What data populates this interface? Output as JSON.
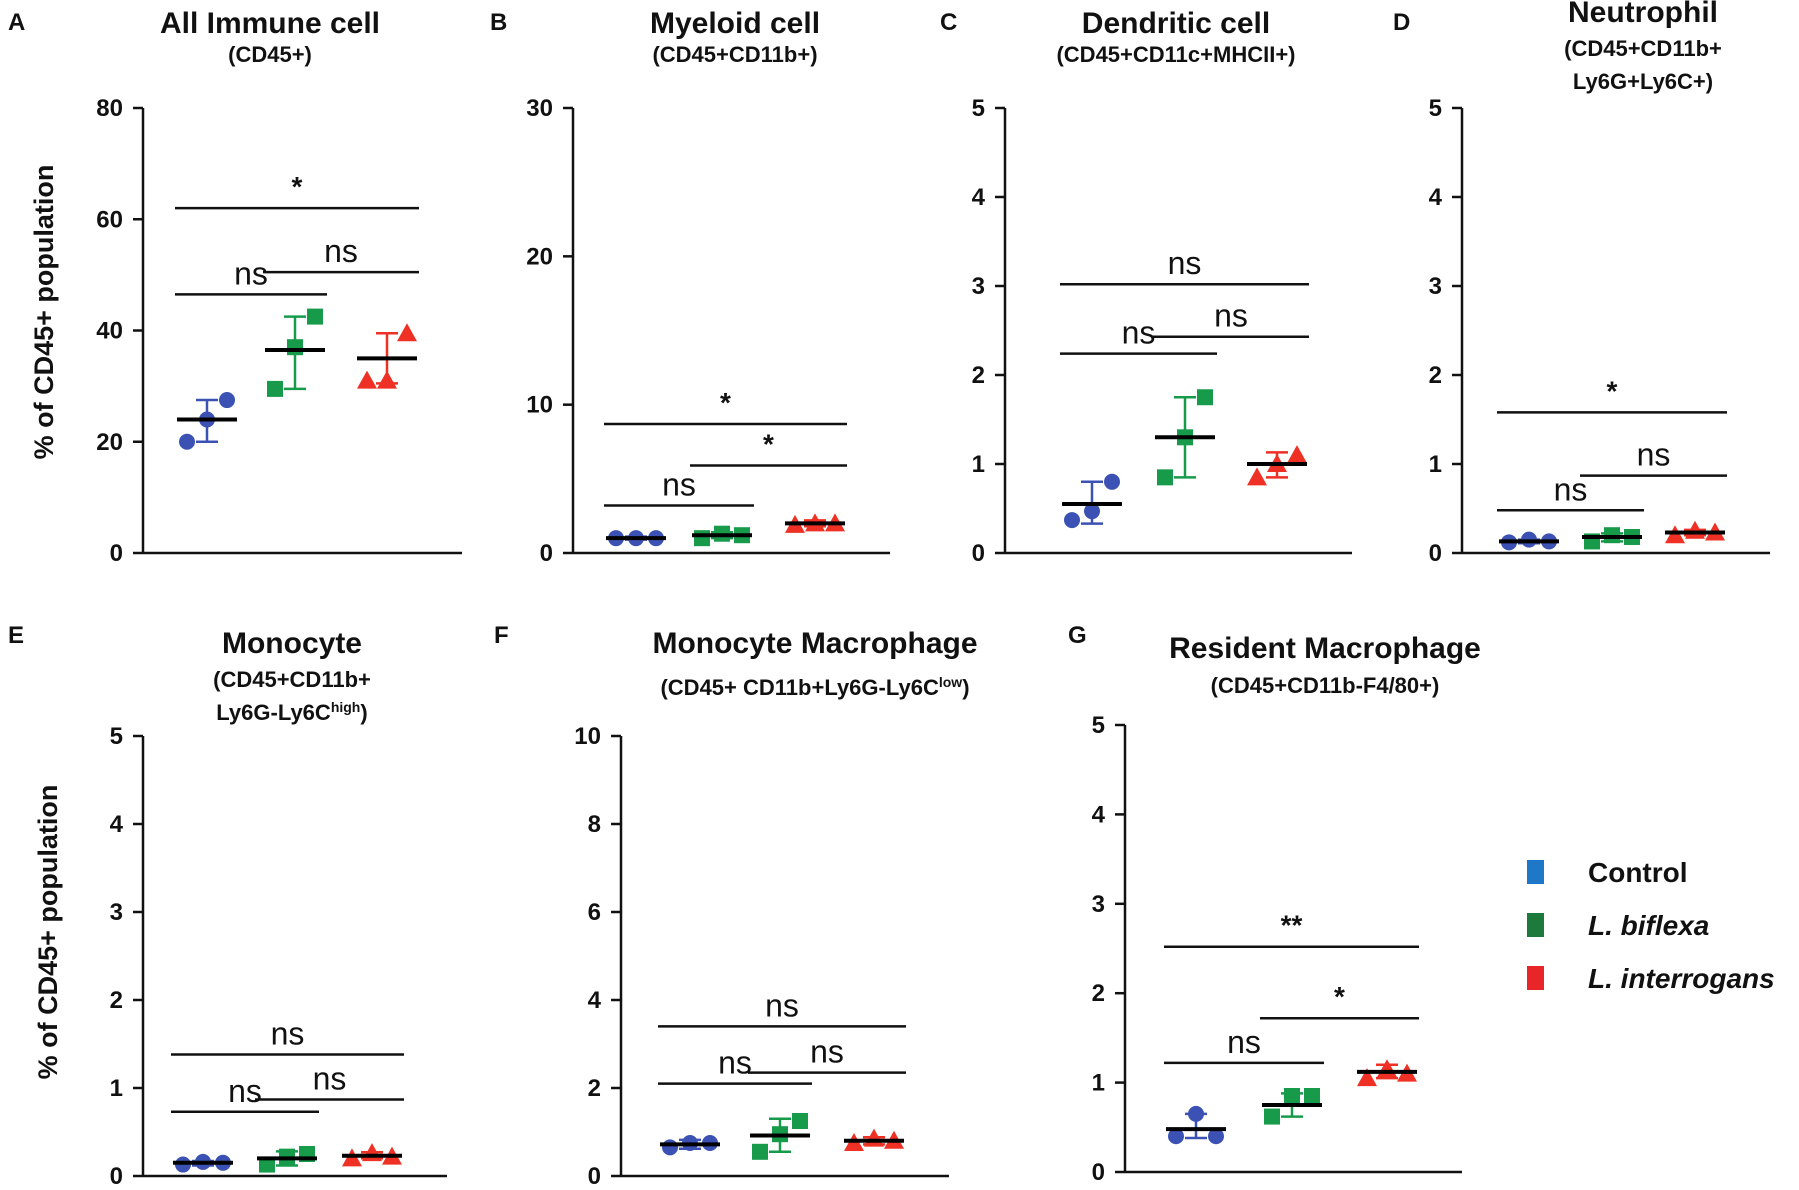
{
  "legend": [
    {
      "label": "Control",
      "color": "#1f77c8",
      "italic": false
    },
    {
      "label": "L. biflexa",
      "color": "#1e7a3c",
      "italic": true
    },
    {
      "label": "L. interrogans",
      "color": "#e8262a",
      "italic": true
    }
  ],
  "y_axis_label": "% of CD45+ population",
  "group_colors": [
    "#3b52b4",
    "#179b4b",
    "#ee3124"
  ],
  "group_markers": [
    "circle",
    "square",
    "triangle"
  ],
  "chart_data": [
    {
      "panel": "A",
      "type": "scatter",
      "title": "All Immune cell",
      "subtitle_lines": [
        "(CD45+)"
      ],
      "ylim": [
        0,
        80
      ],
      "yticks": [
        0,
        20,
        40,
        60,
        80
      ],
      "groups": [
        {
          "points": [
            20,
            24,
            27.5
          ],
          "mean": 24,
          "err": [
            20,
            27.5
          ]
        },
        {
          "points": [
            29.5,
            37,
            42.5
          ],
          "mean": 36.5,
          "err": [
            29.5,
            42.5
          ]
        },
        {
          "points": [
            31,
            31,
            39.5
          ],
          "mean": 35,
          "err": [
            30.5,
            39.5
          ]
        }
      ],
      "comparisons": [
        {
          "from": 0,
          "to": 1,
          "y": 46.5,
          "label": "ns"
        },
        {
          "from": 1,
          "to": 2,
          "y": 50.5,
          "label": "ns"
        },
        {
          "from": 0,
          "to": 2,
          "y": 62,
          "label": "*"
        }
      ]
    },
    {
      "panel": "B",
      "type": "scatter",
      "title": "Myeloid cell",
      "subtitle_lines": [
        "(CD45+CD11b+)"
      ],
      "ylim": [
        0,
        30
      ],
      "yticks": [
        0,
        10,
        20,
        30
      ],
      "groups": [
        {
          "points": [
            1.0,
            1.0,
            1.0
          ],
          "mean": 1.0,
          "err": [
            0.9,
            1.1
          ]
        },
        {
          "points": [
            1.0,
            1.3,
            1.2
          ],
          "mean": 1.2,
          "err": [
            1.0,
            1.4
          ]
        },
        {
          "points": [
            1.9,
            2.0,
            2.0
          ],
          "mean": 2.0,
          "err": [
            1.8,
            2.2
          ]
        }
      ],
      "comparisons": [
        {
          "from": 0,
          "to": 1,
          "y": 3.2,
          "label": "ns"
        },
        {
          "from": 1,
          "to": 2,
          "y": 5.9,
          "label": "*"
        },
        {
          "from": 0,
          "to": 2,
          "y": 8.7,
          "label": "*"
        }
      ]
    },
    {
      "panel": "C",
      "type": "scatter",
      "title": "Dendritic cell",
      "subtitle_lines": [
        "(CD45+CD11c+MHCII+)"
      ],
      "ylim": [
        0,
        5
      ],
      "yticks": [
        0,
        1,
        2,
        3,
        4,
        5
      ],
      "groups": [
        {
          "points": [
            0.37,
            0.47,
            0.8
          ],
          "mean": 0.55,
          "err": [
            0.33,
            0.8
          ]
        },
        {
          "points": [
            0.85,
            1.3,
            1.75
          ],
          "mean": 1.3,
          "err": [
            0.85,
            1.75
          ]
        },
        {
          "points": [
            0.85,
            1.0,
            1.1
          ],
          "mean": 1.0,
          "err": [
            0.85,
            1.13
          ]
        }
      ],
      "comparisons": [
        {
          "from": 0,
          "to": 1,
          "y": 2.24,
          "label": "ns"
        },
        {
          "from": 1,
          "to": 2,
          "y": 2.43,
          "label": "ns"
        },
        {
          "from": 0,
          "to": 2,
          "y": 3.02,
          "label": "ns"
        }
      ]
    },
    {
      "panel": "D",
      "type": "scatter",
      "title": "Neutrophil",
      "subtitle_lines": [
        "(CD45+CD11b+",
        "Ly6G+Ly6C+)"
      ],
      "ylim": [
        0,
        5
      ],
      "yticks": [
        0,
        1,
        2,
        3,
        4,
        5
      ],
      "groups": [
        {
          "points": [
            0.12,
            0.15,
            0.13
          ],
          "mean": 0.13,
          "err": [
            0.11,
            0.15
          ]
        },
        {
          "points": [
            0.13,
            0.2,
            0.18
          ],
          "mean": 0.18,
          "err": [
            0.13,
            0.22
          ]
        },
        {
          "points": [
            0.2,
            0.25,
            0.23
          ],
          "mean": 0.23,
          "err": [
            0.2,
            0.26
          ]
        }
      ],
      "comparisons": [
        {
          "from": 0,
          "to": 1,
          "y": 0.48,
          "label": "ns"
        },
        {
          "from": 1,
          "to": 2,
          "y": 0.87,
          "label": "ns"
        },
        {
          "from": 0,
          "to": 2,
          "y": 1.58,
          "label": "*"
        }
      ]
    },
    {
      "panel": "E",
      "type": "scatter",
      "title": "Monocyte",
      "subtitle_lines": [
        "(CD45+CD11b+",
        "Ly6G-Ly6C^high)"
      ],
      "ylim": [
        0,
        5
      ],
      "yticks": [
        0,
        1,
        2,
        3,
        4,
        5
      ],
      "groups": [
        {
          "points": [
            0.13,
            0.16,
            0.15
          ],
          "mean": 0.15,
          "err": [
            0.12,
            0.17
          ]
        },
        {
          "points": [
            0.13,
            0.22,
            0.25
          ],
          "mean": 0.2,
          "err": [
            0.12,
            0.28
          ]
        },
        {
          "points": [
            0.2,
            0.26,
            0.22
          ],
          "mean": 0.23,
          "err": [
            0.2,
            0.27
          ]
        }
      ],
      "comparisons": [
        {
          "from": 0,
          "to": 1,
          "y": 0.73,
          "label": "ns"
        },
        {
          "from": 1,
          "to": 2,
          "y": 0.87,
          "label": "ns"
        },
        {
          "from": 0,
          "to": 2,
          "y": 1.38,
          "label": "ns"
        }
      ]
    },
    {
      "panel": "F",
      "type": "scatter",
      "title": "Monocyte Macrophage",
      "subtitle_lines": [
        "(CD45+ CD11b+Ly6G-Ly6C^low)"
      ],
      "ylim": [
        0,
        10
      ],
      "yticks": [
        0,
        2,
        4,
        6,
        8,
        10
      ],
      "groups": [
        {
          "points": [
            0.65,
            0.75,
            0.75
          ],
          "mean": 0.72,
          "err": [
            0.62,
            0.82
          ]
        },
        {
          "points": [
            0.55,
            0.95,
            1.25
          ],
          "mean": 0.92,
          "err": [
            0.55,
            1.3
          ]
        },
        {
          "points": [
            0.75,
            0.85,
            0.8
          ],
          "mean": 0.8,
          "err": [
            0.72,
            0.88
          ]
        }
      ],
      "comparisons": [
        {
          "from": 0,
          "to": 1,
          "y": 2.1,
          "label": "ns"
        },
        {
          "from": 1,
          "to": 2,
          "y": 2.35,
          "label": "ns"
        },
        {
          "from": 0,
          "to": 2,
          "y": 3.4,
          "label": "ns"
        }
      ]
    },
    {
      "panel": "G",
      "type": "scatter",
      "title": "Resident Macrophage",
      "subtitle_lines": [
        "(CD45+CD11b-F4/80+)"
      ],
      "ylim": [
        0,
        5
      ],
      "yticks": [
        0,
        1,
        2,
        3,
        4,
        5
      ],
      "groups": [
        {
          "points": [
            0.4,
            0.65,
            0.4
          ],
          "mean": 0.48,
          "err": [
            0.38,
            0.65
          ]
        },
        {
          "points": [
            0.62,
            0.85,
            0.85
          ],
          "mean": 0.75,
          "err": [
            0.62,
            0.88
          ]
        },
        {
          "points": [
            1.05,
            1.15,
            1.1
          ],
          "mean": 1.12,
          "err": [
            1.05,
            1.2
          ]
        }
      ],
      "comparisons": [
        {
          "from": 0,
          "to": 1,
          "y": 1.22,
          "label": "ns"
        },
        {
          "from": 1,
          "to": 2,
          "y": 1.72,
          "label": "*"
        },
        {
          "from": 0,
          "to": 2,
          "y": 2.52,
          "label": "**"
        }
      ]
    }
  ]
}
